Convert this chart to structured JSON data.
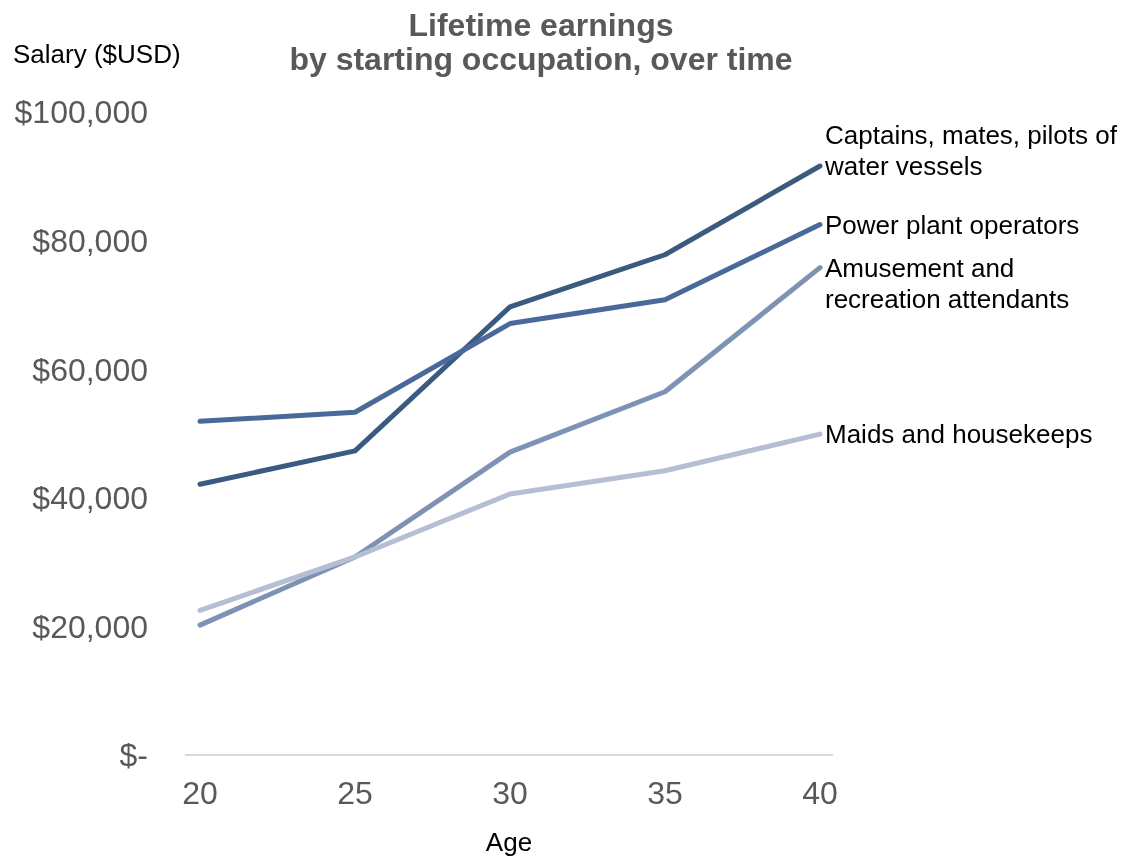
{
  "chart_data": {
    "type": "line",
    "title": "Lifetime earnings\nby starting occupation, over time",
    "xlabel": "Age",
    "ylabel": "Salary ($USD)",
    "categories": [
      "20",
      "25",
      "30",
      "35",
      "40"
    ],
    "series": [
      {
        "name": "Captains, mates, pilots of water vessels",
        "color": "#3a5a80",
        "values": [
          42100,
          47300,
          69700,
          77800,
          91600
        ]
      },
      {
        "name": "Power plant operators",
        "color": "#48699a",
        "values": [
          51900,
          53300,
          67100,
          70800,
          82500
        ]
      },
      {
        "name": "Amusement and recreation attendants",
        "color": "#7d92b4",
        "values": [
          20200,
          30800,
          47100,
          56500,
          75800
        ]
      },
      {
        "name": "Maids and housekeeps",
        "color": "#b5bed2",
        "values": [
          22500,
          30800,
          40600,
          44200,
          49900
        ]
      }
    ],
    "ylim": [
      0,
      100000
    ],
    "yticks": [
      {
        "value": 0,
        "label": "$-"
      },
      {
        "value": 20000,
        "label": "$20,000"
      },
      {
        "value": 40000,
        "label": "$40,000"
      },
      {
        "value": 60000,
        "label": "$60,000"
      },
      {
        "value": 80000,
        "label": "$80,000"
      },
      {
        "value": 100000,
        "label": "$100,000"
      }
    ],
    "marker": "none"
  }
}
